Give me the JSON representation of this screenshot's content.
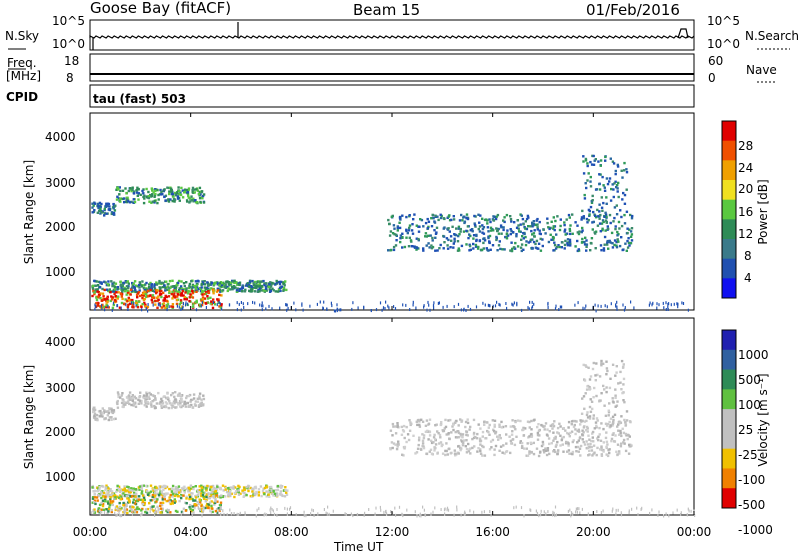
{
  "chart_data": {
    "type": "heatmap",
    "header": {
      "station": "Goose Bay (fitACF)",
      "beam": "Beam 15",
      "date": "01/Feb/2016"
    },
    "x": {
      "label": "Time UT",
      "ticks": [
        "00:00",
        "04:00",
        "08:00",
        "12:00",
        "16:00",
        "20:00",
        "00:00"
      ],
      "range_hours": [
        0,
        24
      ]
    },
    "strips": {
      "noise": {
        "left_label": "N.Sky",
        "right_label": "N.Search",
        "left_ticks": [
          "10^5",
          "10^0"
        ],
        "right_ticks": [
          "10^5",
          "10^0"
        ]
      },
      "freq": {
        "left_label_top": "Freq.",
        "left_label_unit": "[MHz]",
        "right_label": "Nave",
        "left_ticks": [
          "18",
          "8"
        ],
        "right_ticks": [
          "60",
          "0"
        ]
      },
      "cpid": {
        "label": "CPID",
        "text": "tau (fast) 503"
      }
    },
    "panels": [
      {
        "name": "power",
        "ylabel": "Slant Range [km]",
        "yticks": [
          "4000",
          "3000",
          "2000",
          "1000"
        ],
        "ylim": [
          180,
          4500
        ],
        "colorbar": {
          "label": "Power [dB]",
          "ticks": [
            "28",
            "24",
            "20",
            "16",
            "12",
            "8",
            "4"
          ]
        }
      },
      {
        "name": "velocity",
        "ylabel": "Slant Range [km]",
        "yticks": [
          "4000",
          "3000",
          "2000",
          "1000"
        ],
        "ylim": [
          180,
          4500
        ],
        "colorbar": {
          "label": "Velocity [m s⁻¹]",
          "ticks": [
            "1000",
            "500",
            "100",
            "25",
            "-25",
            "-100",
            "-500",
            "-1000"
          ]
        }
      }
    ],
    "echo_regions": [
      {
        "t": [
          0.05,
          1.0
        ],
        "r": [
          2280,
          2560
        ],
        "power": "blue-green",
        "velocity": "grey"
      },
      {
        "t": [
          1.0,
          4.5
        ],
        "r": [
          2550,
          2900
        ],
        "power": "green-blue",
        "velocity": "grey"
      },
      {
        "t": [
          0.05,
          7.8
        ],
        "r": [
          600,
          850
        ],
        "power": "green",
        "velocity": "grey-green"
      },
      {
        "t": [
          0.05,
          5.2
        ],
        "r": [
          250,
          650
        ],
        "power": "red-orange",
        "velocity": "green-orange"
      },
      {
        "t": [
          11.8,
          21.5
        ],
        "r": [
          1500,
          2300
        ],
        "power": "blue-green",
        "velocity": "grey"
      },
      {
        "t": [
          19.5,
          21.3
        ],
        "r": [
          2200,
          3600
        ],
        "power": "blue-green",
        "velocity": "grey"
      }
    ],
    "colors": {
      "power_scale": [
        "#1010f0",
        "#2050b0",
        "#3a7a8a",
        "#2e8b57",
        "#5ac840",
        "#f0e020",
        "#f0a000",
        "#f05000",
        "#e00000"
      ],
      "velocity_scale": [
        "#2020b0",
        "#3060a0",
        "#2e8b57",
        "#60c040",
        "#c0c0c0",
        "#c0c0c0",
        "#f0c000",
        "#f08000",
        "#e00000"
      ]
    }
  }
}
